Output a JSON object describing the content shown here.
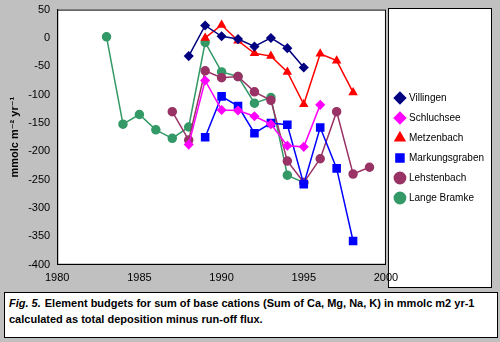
{
  "chart_data": {
    "type": "line",
    "caption": {
      "label": "Fig. 5.",
      "text": "Element budgets for sum of base cations (Sum of Ca, Mg, Na, K) in mmolc m2 yr-1 calculated as total deposition minus run-off flux."
    },
    "y_label": "mmolc m⁻² yr⁻¹",
    "x": [
      1983,
      1984,
      1985,
      1986,
      1987,
      1988,
      1989,
      1990,
      1991,
      1992,
      1993,
      1994,
      1995,
      1996,
      1997,
      1998,
      1999
    ],
    "series": [
      {
        "name": "Villingen",
        "color": "#000080",
        "marker": "diamond",
        "values": [
          null,
          null,
          null,
          null,
          null,
          -32,
          22,
          3,
          -2,
          -15,
          0,
          -18,
          -52,
          null,
          null,
          null,
          null
        ]
      },
      {
        "name": "Schluchsee",
        "color": "#ff00ff",
        "marker": "diamond",
        "values": [
          null,
          null,
          null,
          null,
          null,
          -188,
          -75,
          -127,
          -128,
          -138,
          -152,
          -190,
          -192,
          -118,
          null,
          null,
          null
        ]
      },
      {
        "name": "Metzenbach",
        "color": "#ff0000",
        "marker": "triangle",
        "values": [
          null,
          null,
          null,
          null,
          null,
          null,
          0,
          23,
          -5,
          -27,
          -32,
          -60,
          -117,
          -28,
          -40,
          -96,
          null
        ]
      },
      {
        "name": "Markungsgraben",
        "color": "#0000ff",
        "marker": "square",
        "values": [
          null,
          null,
          null,
          null,
          null,
          null,
          -175,
          -103,
          -120,
          -168,
          -150,
          -153,
          -258,
          -158,
          -230,
          -358,
          null
        ]
      },
      {
        "name": "Lehstenbach",
        "color": "#993366",
        "marker": "circle",
        "values": [
          null,
          null,
          null,
          null,
          -130,
          -180,
          -58,
          -70,
          -68,
          -95,
          -110,
          -217,
          -255,
          -213,
          -130,
          -240,
          -228
        ]
      },
      {
        "name": "Lange Bramke",
        "color": "#339966",
        "marker": "circle",
        "values": [
          2,
          -152,
          -135,
          -162,
          -177,
          -157,
          -8,
          -60,
          -68,
          -115,
          -105,
          -242,
          -255,
          null,
          null,
          null,
          null
        ]
      }
    ],
    "xlim": [
      1980,
      2000
    ],
    "xticks": [
      1980,
      1985,
      1990,
      1995,
      2000
    ],
    "ylim": [
      -400,
      50
    ],
    "yticks": [
      -400,
      -350,
      -300,
      -250,
      -200,
      -150,
      -100,
      -50,
      0,
      50
    ],
    "grid": false,
    "legend": "right"
  }
}
